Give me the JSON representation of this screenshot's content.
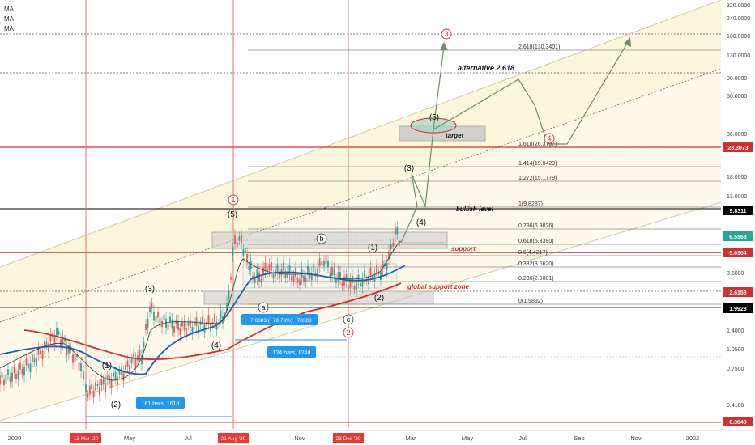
{
  "indicators": [
    "MA",
    "MA",
    "MA"
  ],
  "colors": {
    "candle_up": "#26a69a",
    "candle_down": "#ef5350",
    "ma_fast": "#444444",
    "ma_blue": "#1f5fae",
    "ma_red": "#d32f2f",
    "channel_fill": "#fbf7dc",
    "vline": "#f06060",
    "fib": "#777777",
    "arrow": "#6b8f6b",
    "wave_red": "#d32f2f",
    "box": "#b0b0b0"
  },
  "chart_data": {
    "type": "line",
    "y_scale": "log",
    "y_axis_ticks": [
      "320.0000",
      "240.0000",
      "180.0000",
      "130.0000",
      "90.0000",
      "60.0000",
      "36.0000",
      "18.0000",
      "13.0000",
      "3.6000",
      "1.4000",
      "1.0500",
      "0.7500",
      "0.4100"
    ],
    "y_axis_badges": [
      {
        "value": "28.3073",
        "color": "#d32f2f"
      },
      {
        "value": "9.8311",
        "color": "#000000"
      },
      {
        "value": "6.5568",
        "color": "#26a69a"
      },
      {
        "value": "5.0304",
        "color": "#d32f2f"
      },
      {
        "value": "2.6158",
        "color": "#d32f2f"
      },
      {
        "value": "1.9928",
        "color": "#000000"
      },
      {
        "value": "0.3048",
        "color": "#d32f2f"
      }
    ],
    "x_axis_ticks": [
      "2020",
      "May",
      "Jul",
      "Nov",
      "Mar",
      "May",
      "Jul",
      "Sep",
      "Nov",
      "2022"
    ],
    "x_axis_badges": [
      "13 Mar '20",
      "21 Aug '20",
      "23 Dec '20"
    ],
    "fib_levels": [
      {
        "label": "2.618(130.3401)",
        "value": 130.3401
      },
      {
        "label": "1.618(26.3797)",
        "value": 26.3797
      },
      {
        "label": "1.414(19.0429)",
        "value": 19.0429
      },
      {
        "label": "1.272(15.1779)",
        "value": 15.1779
      },
      {
        "label": "1(9.8287)",
        "value": 9.8287
      },
      {
        "label": "0.786(6.9826)",
        "value": 6.9826
      },
      {
        "label": "0.618(5.3390)",
        "value": 5.339
      },
      {
        "label": "0.5(4.4217)",
        "value": 4.4217
      },
      {
        "label": "0.382(3.6620)",
        "value": 3.662
      },
      {
        "label": "0.236(2.9001)",
        "value": 2.9001
      },
      {
        "label": "0(1.9892)",
        "value": 1.9892
      }
    ],
    "annotations": {
      "bullish_level": "bullish  level",
      "support": "support",
      "global_support": "global  support zone",
      "target": "target",
      "alternative": "alternative  2.618"
    },
    "wave_labels": [
      "(1)",
      "(2)",
      "(3)",
      "(4)",
      "(5)",
      "a",
      "b",
      "c",
      "(5)",
      "(1)",
      "(2)",
      "(3)",
      "(4)"
    ],
    "red_wave_labels": [
      "1",
      "2",
      "3",
      "4"
    ],
    "measure_labels": [
      "161 bars, 161d",
      "124 bars, 124d",
      "−7.8383 (−79.73%) −78383"
    ]
  }
}
